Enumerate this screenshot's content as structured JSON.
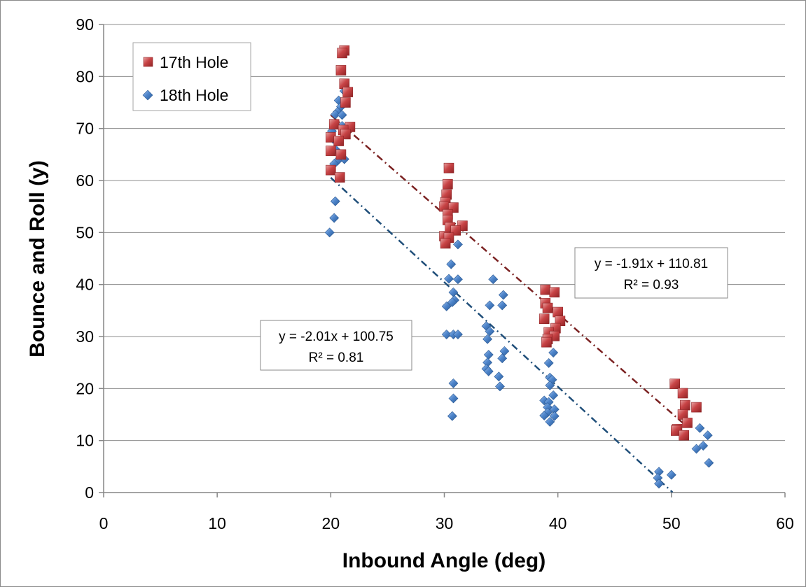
{
  "chart_data": {
    "type": "scatter",
    "xlabel": "Inbound Angle (deg)",
    "ylabel": "Bounce and Roll (y)",
    "xlim": [
      0,
      60
    ],
    "ylim": [
      0,
      90
    ],
    "xticks": [
      "0",
      "10",
      "20",
      "30",
      "40",
      "50",
      "60"
    ],
    "yticks": [
      "0",
      "10",
      "20",
      "30",
      "40",
      "50",
      "60",
      "70",
      "80",
      "90"
    ],
    "grid": "horizontal",
    "legend_position": "top-left",
    "series": [
      {
        "name": "17th Hole",
        "marker": "square",
        "color": "#c0393b",
        "points": [
          [
            21.2,
            85
          ],
          [
            21.0,
            84.5
          ],
          [
            20.9,
            81.2
          ],
          [
            21.2,
            78.6
          ],
          [
            21.5,
            77
          ],
          [
            21.3,
            75
          ],
          [
            20.3,
            70.8
          ],
          [
            21.7,
            70.3
          ],
          [
            21.1,
            69.7
          ],
          [
            21.3,
            68.9
          ],
          [
            20.0,
            68.3
          ],
          [
            20.7,
            67.6
          ],
          [
            20.0,
            65.7
          ],
          [
            20.9,
            65
          ],
          [
            20.0,
            62
          ],
          [
            20.8,
            60.6
          ],
          [
            30.4,
            62.4
          ],
          [
            30.3,
            59.3
          ],
          [
            30.2,
            57.3
          ],
          [
            30.1,
            55.8
          ],
          [
            30.0,
            55
          ],
          [
            30.8,
            54.8
          ],
          [
            30.3,
            53.5
          ],
          [
            30.3,
            52.4
          ],
          [
            30.5,
            51
          ],
          [
            31.6,
            51.3
          ],
          [
            31.0,
            50.4
          ],
          [
            30.0,
            49.3
          ],
          [
            30.4,
            49
          ],
          [
            30.1,
            47.9
          ],
          [
            38.9,
            39
          ],
          [
            39.7,
            38.5
          ],
          [
            38.9,
            36.4
          ],
          [
            39.1,
            35.5
          ],
          [
            40.0,
            34.7
          ],
          [
            38.8,
            33.4
          ],
          [
            40.2,
            33
          ],
          [
            39.8,
            31.6
          ],
          [
            39.2,
            30.8
          ],
          [
            39.7,
            30.1
          ],
          [
            39.1,
            29.5
          ],
          [
            39.0,
            28.9
          ],
          [
            50.3,
            20.9
          ],
          [
            51.0,
            19.1
          ],
          [
            51.2,
            16.8
          ],
          [
            52.2,
            16.4
          ],
          [
            51.0,
            15
          ],
          [
            51.4,
            13.4
          ],
          [
            50.5,
            12.2
          ],
          [
            50.4,
            11.9
          ],
          [
            51.1,
            11
          ]
        ]
      },
      {
        "name": "18th Hole",
        "marker": "diamond",
        "color": "#4a7fc1",
        "points": [
          [
            21.2,
            77.2
          ],
          [
            20.7,
            75.4
          ],
          [
            20.9,
            74.2
          ],
          [
            20.6,
            73.2
          ],
          [
            20.4,
            72.7
          ],
          [
            21.0,
            72.6
          ],
          [
            21.0,
            70.5
          ],
          [
            20.1,
            69.5
          ],
          [
            20.2,
            68
          ],
          [
            20.4,
            66
          ],
          [
            21.2,
            64.1
          ],
          [
            20.6,
            63.8
          ],
          [
            20.3,
            63.2
          ],
          [
            20.4,
            56
          ],
          [
            20.3,
            52.8
          ],
          [
            19.9,
            50
          ],
          [
            31.2,
            47.7
          ],
          [
            30.6,
            43.9
          ],
          [
            30.4,
            41.1
          ],
          [
            31.2,
            41
          ],
          [
            30.8,
            38.5
          ],
          [
            30.9,
            37
          ],
          [
            30.7,
            36.6
          ],
          [
            30.2,
            35.8
          ],
          [
            30.2,
            30.4
          ],
          [
            30.8,
            30.4
          ],
          [
            31.2,
            30.4
          ],
          [
            30.8,
            21
          ],
          [
            30.8,
            18.1
          ],
          [
            30.7,
            14.7
          ],
          [
            34.3,
            41
          ],
          [
            35.2,
            38
          ],
          [
            34.0,
            36
          ],
          [
            35.1,
            36
          ],
          [
            33.7,
            32
          ],
          [
            34.0,
            31
          ],
          [
            33.8,
            29.5
          ],
          [
            33.9,
            26.5
          ],
          [
            35.3,
            27.2
          ],
          [
            33.8,
            25
          ],
          [
            35.1,
            25.8
          ],
          [
            33.7,
            23.8
          ],
          [
            33.9,
            23.3
          ],
          [
            34.8,
            22.3
          ],
          [
            34.9,
            20.4
          ],
          [
            39.6,
            26.9
          ],
          [
            39.2,
            24.9
          ],
          [
            39.3,
            22.1
          ],
          [
            39.5,
            21.7
          ],
          [
            39.3,
            20.6
          ],
          [
            39.6,
            18.7
          ],
          [
            38.8,
            17.7
          ],
          [
            39.2,
            17.4
          ],
          [
            39.1,
            16.4
          ],
          [
            39.7,
            16
          ],
          [
            39.1,
            15.4
          ],
          [
            38.8,
            14.8
          ],
          [
            39.7,
            14.7
          ],
          [
            39.3,
            13.6
          ],
          [
            48.9,
            4
          ],
          [
            48.8,
            2.8
          ],
          [
            50.0,
            3.4
          ],
          [
            48.9,
            1.7
          ],
          [
            52.5,
            12.4
          ],
          [
            53.2,
            11
          ],
          [
            52.8,
            9
          ],
          [
            52.2,
            8.4
          ],
          [
            53.3,
            5.7
          ]
        ]
      }
    ],
    "trendlines": [
      {
        "series": "17th Hole",
        "color": "#7b2222",
        "style": "dash-dot",
        "slope": -1.91,
        "intercept": 110.81,
        "x_range": [
          20,
          51
        ],
        "equation": "y = -1.91x + 110.81",
        "r2": "R² = 0.93"
      },
      {
        "series": "18th Hole",
        "color": "#1f4e79",
        "style": "dash-dot",
        "slope": -2.01,
        "intercept": 100.75,
        "x_range": [
          20,
          50.1
        ],
        "equation": "y = -2.01x + 100.75",
        "r2": "R² = 0.81"
      }
    ]
  }
}
